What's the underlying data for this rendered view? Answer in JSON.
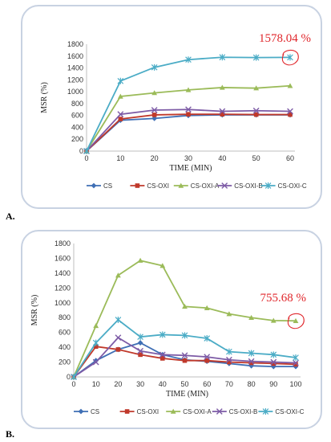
{
  "panels": [
    {
      "letter": "A."
    },
    {
      "letter": "B."
    }
  ],
  "chart_data": [
    {
      "type": "line",
      "title": "",
      "xlabel": "TIME (MIN)",
      "ylabel": "MSR (%)",
      "x": [
        0,
        10,
        20,
        30,
        40,
        50,
        60
      ],
      "xlim": [
        0,
        60
      ],
      "ylim": [
        0,
        1800
      ],
      "yticks": [
        0,
        200,
        400,
        600,
        800,
        1000,
        1200,
        1400,
        1600,
        1800
      ],
      "grid": false,
      "legend_position": "bottom",
      "annotation": {
        "text": "1578.04 %",
        "x": 60,
        "y": 1578
      },
      "series": [
        {
          "name": "CS",
          "color": "#3f6fb5",
          "marker": "diamond",
          "values": [
            0,
            520,
            550,
            600,
            610,
            610,
            610
          ]
        },
        {
          "name": "CS-OXI",
          "color": "#c0392b",
          "marker": "square",
          "values": [
            0,
            540,
            610,
            620,
            620,
            615,
            615
          ]
        },
        {
          "name": "CS-OXI-A",
          "color": "#9bbb59",
          "marker": "triangle",
          "values": [
            0,
            920,
            980,
            1030,
            1070,
            1060,
            1100
          ]
        },
        {
          "name": "CS-OXI-B",
          "color": "#7d5ba6",
          "marker": "x",
          "values": [
            0,
            620,
            690,
            700,
            670,
            680,
            670
          ]
        },
        {
          "name": "CS-OXI-C",
          "color": "#4bacc6",
          "marker": "star",
          "values": [
            0,
            1180,
            1410,
            1540,
            1580,
            1575,
            1578
          ]
        }
      ]
    },
    {
      "type": "line",
      "title": "",
      "xlabel": "TIME (MIN)",
      "ylabel": "MSR (%)",
      "x": [
        0,
        10,
        20,
        30,
        40,
        50,
        60,
        70,
        80,
        90,
        100
      ],
      "xlim": [
        0,
        100
      ],
      "ylim": [
        0,
        1800
      ],
      "yticks": [
        0,
        200,
        400,
        600,
        800,
        1000,
        1200,
        1400,
        1600,
        1800
      ],
      "grid": false,
      "legend_position": "bottom",
      "annotation": {
        "text": "755.68 %",
        "x": 100,
        "y": 756
      },
      "series": [
        {
          "name": "CS",
          "color": "#3f6fb5",
          "marker": "diamond",
          "values": [
            0,
            220,
            370,
            460,
            300,
            230,
            210,
            180,
            150,
            140,
            140
          ]
        },
        {
          "name": "CS-OXI",
          "color": "#c0392b",
          "marker": "square",
          "values": [
            0,
            410,
            370,
            300,
            250,
            220,
            220,
            200,
            190,
            180,
            170
          ]
        },
        {
          "name": "CS-OXI-A",
          "color": "#9bbb59",
          "marker": "triangle",
          "values": [
            0,
            690,
            1370,
            1570,
            1500,
            950,
            930,
            850,
            800,
            760,
            756
          ]
        },
        {
          "name": "CS-OXI-B",
          "color": "#7d5ba6",
          "marker": "x",
          "values": [
            0,
            200,
            530,
            350,
            300,
            290,
            270,
            230,
            210,
            200,
            190
          ]
        },
        {
          "name": "CS-OXI-C",
          "color": "#4bacc6",
          "marker": "star",
          "values": [
            0,
            460,
            770,
            540,
            570,
            560,
            520,
            340,
            320,
            300,
            260
          ]
        }
      ]
    }
  ]
}
